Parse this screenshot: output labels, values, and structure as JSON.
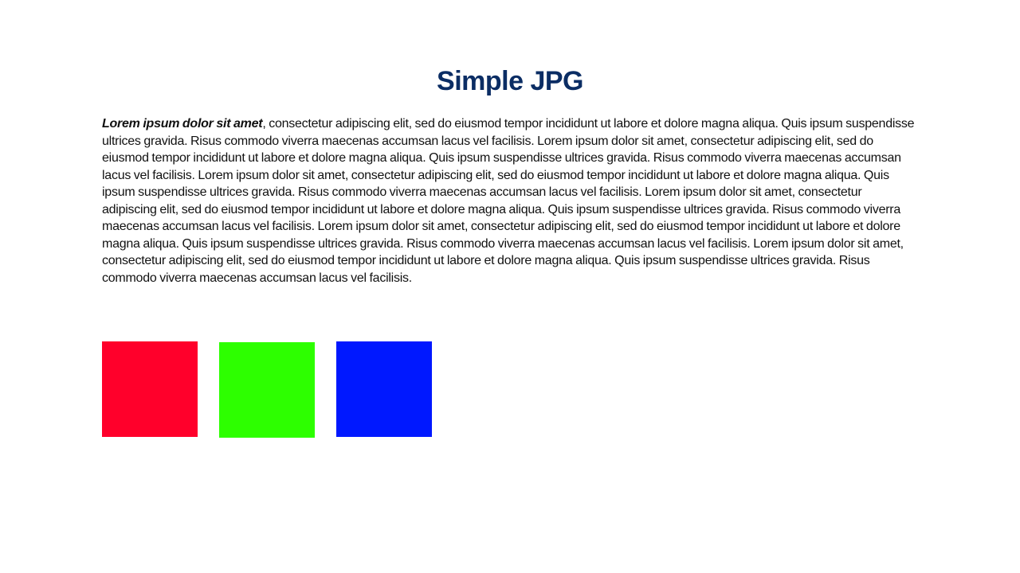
{
  "document": {
    "title": "Simple JPG",
    "title_color": "#0b2d64",
    "lead_text": "Lorem ipsum dolor sit amet",
    "body_text": ", consectetur adipiscing elit, sed do eiusmod tempor incididunt ut labore et dolore magna aliqua. Quis ipsum suspendisse ultrices gravida. Risus commodo viverra maecenas accumsan lacus vel facilisis. Lorem ipsum dolor sit amet, consectetur adipiscing elit, sed do eiusmod tempor incididunt ut labore et dolore magna aliqua. Quis ipsum suspendisse ultrices gravida. Risus commodo viverra maecenas accumsan lacus vel facilisis. Lorem ipsum dolor sit amet, consectetur adipiscing elit, sed do eiusmod tempor incididunt ut labore et dolore magna aliqua. Quis ipsum suspendisse ultrices gravida. Risus commodo viverra maecenas accumsan lacus vel facilisis. Lorem ipsum dolor sit amet, consectetur adipiscing elit, sed do eiusmod tempor incididunt ut labore et dolore magna aliqua. Quis ipsum suspendisse ultrices gravida. Risus commodo viverra maecenas accumsan lacus vel facilisis. Lorem ipsum dolor sit amet, consectetur adipiscing elit, sed do eiusmod tempor incididunt ut labore et dolore magna aliqua. Quis ipsum suspendisse ultrices gravida. Risus commodo viverra maecenas accumsan lacus vel facilisis. Lorem ipsum dolor sit amet, consectetur adipiscing elit, sed do eiusmod tempor incididunt ut labore et dolore magna aliqua. Quis ipsum suspendisse ultrices gravida. Risus commodo viverra maecenas accumsan lacus vel facilisis.",
    "squares": [
      {
        "name": "red",
        "color": "#ff002b"
      },
      {
        "name": "green",
        "color": "#2dff00"
      },
      {
        "name": "blue",
        "color": "#0018ff"
      }
    ]
  }
}
